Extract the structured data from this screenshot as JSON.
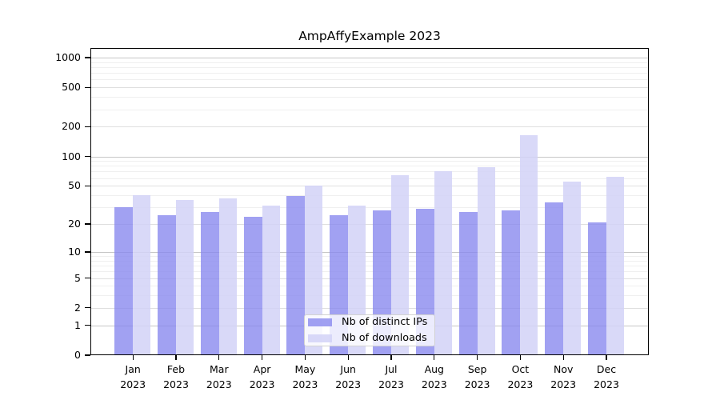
{
  "chart_data": {
    "type": "bar",
    "title": "AmpAffyExample 2023",
    "categories": [
      "Jan",
      "Feb",
      "Mar",
      "Apr",
      "May",
      "Jun",
      "Jul",
      "Aug",
      "Sep",
      "Oct",
      "Nov",
      "Dec"
    ],
    "year": "2023",
    "series": [
      {
        "name": "Nb of distinct IPs",
        "color": "#a5a5f1",
        "values": [
          30,
          25,
          27,
          24,
          39,
          25,
          28,
          29,
          27,
          28,
          34,
          21
        ]
      },
      {
        "name": "Nb of downloads",
        "color": "#dadaf8",
        "values": [
          40,
          36,
          37,
          31,
          50,
          31,
          64,
          70,
          78,
          165,
          55,
          62
        ]
      }
    ],
    "xlabel": "",
    "ylabel": "",
    "yscale": "log1p",
    "yticks": [
      0,
      1,
      2,
      5,
      10,
      20,
      50,
      100,
      200,
      500,
      1000
    ],
    "ylim": [
      0,
      1250
    ],
    "grid": "on",
    "grid_minor_ticks": [
      3,
      4,
      6,
      7,
      8,
      9,
      30,
      40,
      60,
      70,
      80,
      90,
      300,
      400,
      600,
      700,
      800,
      900
    ],
    "grid_major_ticks": [
      1,
      10,
      100,
      1000
    ],
    "legend_position": "lower center",
    "background_color": "#ffffff",
    "text_color": "#000000"
  }
}
